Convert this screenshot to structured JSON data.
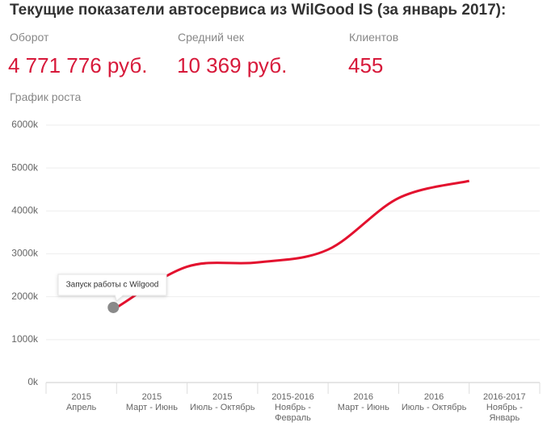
{
  "header": {
    "title": "Текущие показатели автосервиса из WilGood IS (за январь 2017):",
    "stats": [
      {
        "label": "Оборот",
        "value": "4 771 776 руб."
      },
      {
        "label": "Средний чек",
        "value": "10 369 руб."
      },
      {
        "label": "Клиентов",
        "value": "455"
      }
    ]
  },
  "chart_data": {
    "type": "line",
    "title": "График роста",
    "categories": [
      [
        "2015",
        "Апрель"
      ],
      [
        "2015",
        "Март - Июнь"
      ],
      [
        "2015",
        "Июль - Октябрь"
      ],
      [
        "2015-2016",
        "Ноябрь -",
        "Февраль"
      ],
      [
        "2016",
        "Март - Июнь"
      ],
      [
        "2016",
        "Июль - Октябрь"
      ],
      [
        "2016-2017",
        "Ноябрь -",
        "Январь"
      ]
    ],
    "series": [
      {
        "name": "Оборот",
        "color": "#e3112e",
        "values": [
          1750000,
          2700000,
          2800000,
          3100000,
          4300000,
          4700000,
          null
        ]
      }
    ],
    "annotation": "Запуск работы с Wilgood",
    "ylim": [
      0,
      6000000
    ],
    "yticks": [
      {
        "value": 0,
        "label": "0k"
      },
      {
        "value": 1000000,
        "label": "1000k"
      },
      {
        "value": 2000000,
        "label": "2000k"
      },
      {
        "value": 3000000,
        "label": "3000k"
      },
      {
        "value": 4000000,
        "label": "4000k"
      },
      {
        "value": 5000000,
        "label": "5000k"
      },
      {
        "value": 6000000,
        "label": "6000k"
      }
    ],
    "grid": true
  }
}
